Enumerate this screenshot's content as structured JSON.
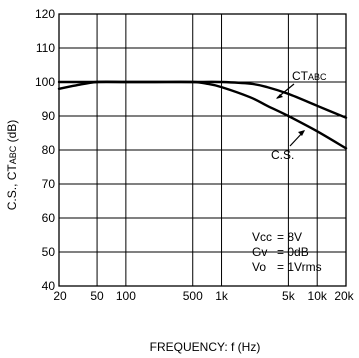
{
  "chart_data": {
    "type": "line",
    "xlabel": "FREQUENCY: f (Hz)",
    "ylabel": "C.S., CT_ABC (dB)",
    "ylabel_main": "C.S., CT",
    "ylabel_sub": "ABC",
    "ylabel_tail": " (dB)",
    "x_scale": "log",
    "xlim": [
      20,
      20000
    ],
    "ylim": [
      40,
      120
    ],
    "grid": true,
    "x_ticks": [
      {
        "value": 20,
        "label": "20"
      },
      {
        "value": 50,
        "label": "50"
      },
      {
        "value": 100,
        "label": "100"
      },
      {
        "value": 500,
        "label": "500"
      },
      {
        "value": 1000,
        "label": "1k"
      },
      {
        "value": 5000,
        "label": "5k"
      },
      {
        "value": 10000,
        "label": "10k"
      },
      {
        "value": 20000,
        "label": "20k"
      }
    ],
    "x_grid": [
      20,
      50,
      100,
      500,
      1000,
      5000,
      10000,
      20000
    ],
    "y_ticks": [
      40,
      50,
      60,
      70,
      80,
      90,
      100,
      110,
      120
    ],
    "series": [
      {
        "name": "CT",
        "name_main": "CT",
        "name_sub": "ABC",
        "x": [
          20,
          30,
          50,
          100,
          200,
          500,
          1000,
          2000,
          3000,
          5000,
          10000,
          20000
        ],
        "y": [
          100,
          100,
          100,
          100,
          100,
          100,
          100,
          99.5,
          98.5,
          96.5,
          93,
          89.5
        ]
      },
      {
        "name": "C.S.",
        "x": [
          20,
          30,
          50,
          100,
          200,
          500,
          700,
          1000,
          2000,
          3000,
          5000,
          10000,
          20000
        ],
        "y": [
          98,
          99,
          100,
          100,
          100,
          100,
          99.5,
          98.5,
          95.5,
          93,
          90,
          85.5,
          80.5
        ]
      }
    ],
    "annotations": [
      {
        "line1": "Vcc",
        "line2": "Gv",
        "line3": "Vo"
      },
      {
        "val1": "= 8V",
        "val2": "= 0dB",
        "val3": "= 1Vrms"
      }
    ]
  }
}
